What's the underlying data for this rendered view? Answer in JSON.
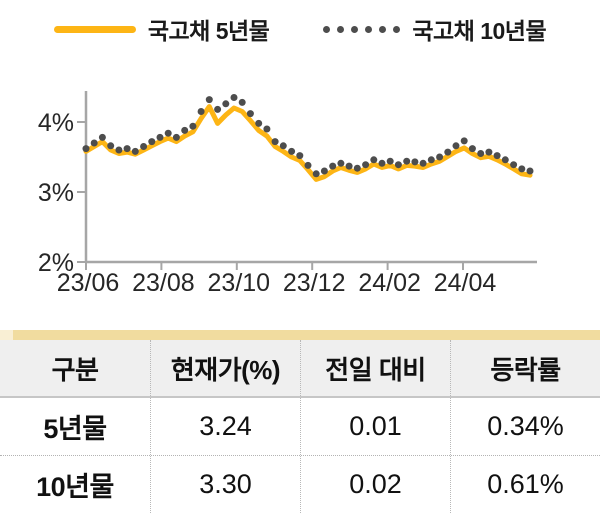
{
  "legend": {
    "series_5yr_label": "국고채 5년물",
    "series_10yr_label": "국고채 10년물"
  },
  "colors": {
    "line_5yr": "#FDB515",
    "dot_10yr": "#4D4D4D",
    "axis": "#A6A6A6",
    "tick_text": "#262626",
    "table_top_bar": "#F1DC9F",
    "table_top_bar_light": "#F9EFD4",
    "table_header_bg": "#EFEFEF"
  },
  "chart_data": {
    "type": "line",
    "title": "",
    "xlabel": "",
    "ylabel": "",
    "x_tick_labels": [
      "23/06",
      "23/08",
      "23/10",
      "23/12",
      "24/02",
      "24/04"
    ],
    "y_tick_labels": [
      "4%",
      "3%",
      "2%"
    ],
    "y_tick_values": [
      4,
      3,
      2
    ],
    "ylim": [
      2,
      4.45
    ],
    "x_range": [
      "23/06",
      "24/05"
    ],
    "grid": false,
    "legend_position": "top",
    "series": [
      {
        "name": "국고채 5년물",
        "style": "solid",
        "color": "#FDB515",
        "values": [
          3.58,
          3.65,
          3.72,
          3.6,
          3.55,
          3.57,
          3.54,
          3.6,
          3.66,
          3.72,
          3.77,
          3.72,
          3.8,
          3.86,
          4.05,
          4.22,
          3.98,
          4.1,
          4.2,
          4.15,
          4.02,
          3.88,
          3.8,
          3.65,
          3.58,
          3.5,
          3.45,
          3.32,
          3.18,
          3.22,
          3.3,
          3.35,
          3.31,
          3.28,
          3.33,
          3.4,
          3.35,
          3.38,
          3.33,
          3.38,
          3.37,
          3.35,
          3.4,
          3.44,
          3.51,
          3.58,
          3.63,
          3.55,
          3.49,
          3.51,
          3.46,
          3.4,
          3.33,
          3.26,
          3.24
        ]
      },
      {
        "name": "국고채 10년물",
        "style": "dotted",
        "color": "#4D4D4D",
        "values": [
          3.62,
          3.7,
          3.78,
          3.66,
          3.6,
          3.62,
          3.58,
          3.65,
          3.72,
          3.78,
          3.84,
          3.78,
          3.88,
          3.94,
          4.15,
          4.32,
          4.18,
          4.26,
          4.35,
          4.28,
          4.12,
          3.98,
          3.9,
          3.72,
          3.66,
          3.58,
          3.52,
          3.38,
          3.26,
          3.3,
          3.37,
          3.41,
          3.37,
          3.34,
          3.39,
          3.46,
          3.41,
          3.44,
          3.39,
          3.44,
          3.43,
          3.41,
          3.46,
          3.5,
          3.57,
          3.66,
          3.73,
          3.62,
          3.55,
          3.57,
          3.52,
          3.46,
          3.39,
          3.33,
          3.3
        ]
      }
    ]
  },
  "table": {
    "headers": [
      "구분",
      "현재가(%)",
      "전일 대비",
      "등락률"
    ],
    "rows": [
      [
        "5년물",
        "3.24",
        "0.01",
        "0.34%"
      ],
      [
        "10년물",
        "3.30",
        "0.02",
        "0.61%"
      ]
    ]
  }
}
